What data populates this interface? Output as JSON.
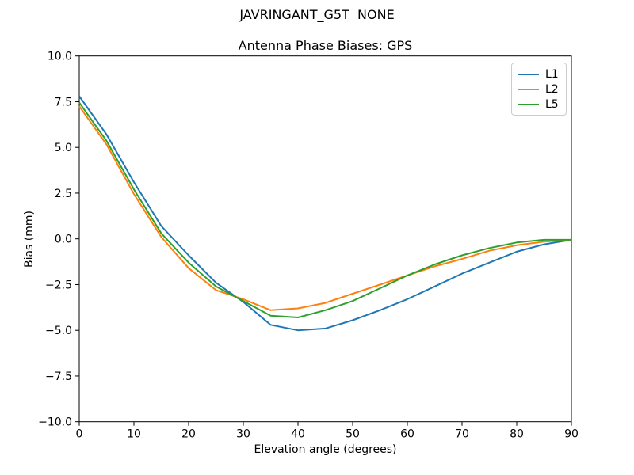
{
  "chart_data": {
    "type": "line",
    "title": "JAVRINGANT_G5T  NONE",
    "subtitle": "Antenna Phase Biases: GPS",
    "xlabel": "Elevation angle (degrees)",
    "ylabel": "Bias (mm)",
    "xlim": [
      0,
      90
    ],
    "ylim": [
      -10,
      10
    ],
    "grid": false,
    "legend_position": "upper right",
    "xticks": [
      {
        "v": 0,
        "label": "0"
      },
      {
        "v": 10,
        "label": "10"
      },
      {
        "v": 20,
        "label": "20"
      },
      {
        "v": 30,
        "label": "30"
      },
      {
        "v": 40,
        "label": "40"
      },
      {
        "v": 50,
        "label": "50"
      },
      {
        "v": 60,
        "label": "60"
      },
      {
        "v": 70,
        "label": "70"
      },
      {
        "v": 80,
        "label": "80"
      },
      {
        "v": 90,
        "label": "90"
      }
    ],
    "yticks": [
      {
        "v": 10,
        "label": "10.0"
      },
      {
        "v": 7.5,
        "label": "7.5"
      },
      {
        "v": 5,
        "label": "5.0"
      },
      {
        "v": 2.5,
        "label": "2.5"
      },
      {
        "v": 0,
        "label": "0.0"
      },
      {
        "v": -2.5,
        "label": "−2.5"
      },
      {
        "v": -5,
        "label": "−5.0"
      },
      {
        "v": -7.5,
        "label": "−7.5"
      },
      {
        "v": -10,
        "label": "−10.0"
      }
    ],
    "x": [
      0,
      5,
      10,
      15,
      20,
      25,
      30,
      35,
      40,
      45,
      50,
      55,
      60,
      65,
      70,
      75,
      80,
      85,
      90
    ],
    "series": [
      {
        "name": "L1",
        "color": "#1f77b4",
        "values": [
          7.8,
          5.7,
          3.1,
          0.7,
          -0.9,
          -2.4,
          -3.45,
          -4.7,
          -5.0,
          -4.9,
          -4.45,
          -3.9,
          -3.3,
          -2.6,
          -1.9,
          -1.3,
          -0.7,
          -0.3,
          -0.05
        ]
      },
      {
        "name": "L2",
        "color": "#ff7f0e",
        "values": [
          7.25,
          5.15,
          2.45,
          0.1,
          -1.6,
          -2.8,
          -3.3,
          -3.9,
          -3.8,
          -3.5,
          -3.0,
          -2.5,
          -2.0,
          -1.5,
          -1.1,
          -0.65,
          -0.35,
          -0.15,
          -0.05
        ]
      },
      {
        "name": "L5",
        "color": "#2ca02c",
        "values": [
          7.45,
          5.35,
          2.7,
          0.3,
          -1.3,
          -2.6,
          -3.4,
          -4.2,
          -4.3,
          -3.9,
          -3.4,
          -2.7,
          -2.0,
          -1.4,
          -0.9,
          -0.5,
          -0.2,
          -0.05,
          -0.05
        ]
      }
    ]
  }
}
